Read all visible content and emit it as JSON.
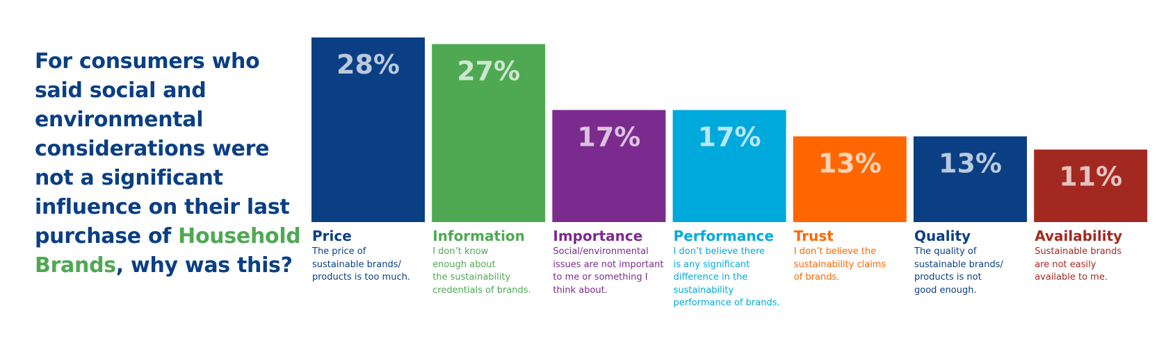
{
  "question": {
    "part1": "For consumers who said social and environmental considerations were not a significant influence on their last purchase of ",
    "highlight": "Household Brands",
    "part2": ", why was this?"
  },
  "colors": {
    "question_text": "#0a3f84",
    "highlight": "#4ea952"
  },
  "chart_data": {
    "type": "bar",
    "categories": [
      "Price",
      "Information",
      "Importance",
      "Performance",
      "Trust",
      "Quality",
      "Availability"
    ],
    "values": [
      28,
      27,
      17,
      17,
      13,
      13,
      11
    ],
    "value_labels": [
      "28%",
      "27%",
      "17%",
      "17%",
      "13%",
      "13%",
      "11%"
    ],
    "descriptions": [
      "The price of\nsustainable brands/\nproducts is too much.",
      "I don’t know\nenough about\nthe sustainability\ncredentials of brands.",
      "Social/environmental\nissues are not important\nto me or something I\nthink about.",
      "I don’t believe there\nis any significant\ndifference in the\nsustainability\nperformance of brands.",
      "I don’t believe the\nsustainability claims\nof brands.",
      "The quality of\nsustainable brands/\nproducts is not\ngood enough.",
      "Sustainable brands\nare not easily\navailable to me."
    ],
    "colors": [
      "#0a3f84",
      "#4ea952",
      "#7b2a8e",
      "#00a9dc",
      "#ff6600",
      "#0a3f84",
      "#a32920"
    ],
    "ylim": [
      0,
      28
    ],
    "grid": false,
    "legend": "none"
  }
}
